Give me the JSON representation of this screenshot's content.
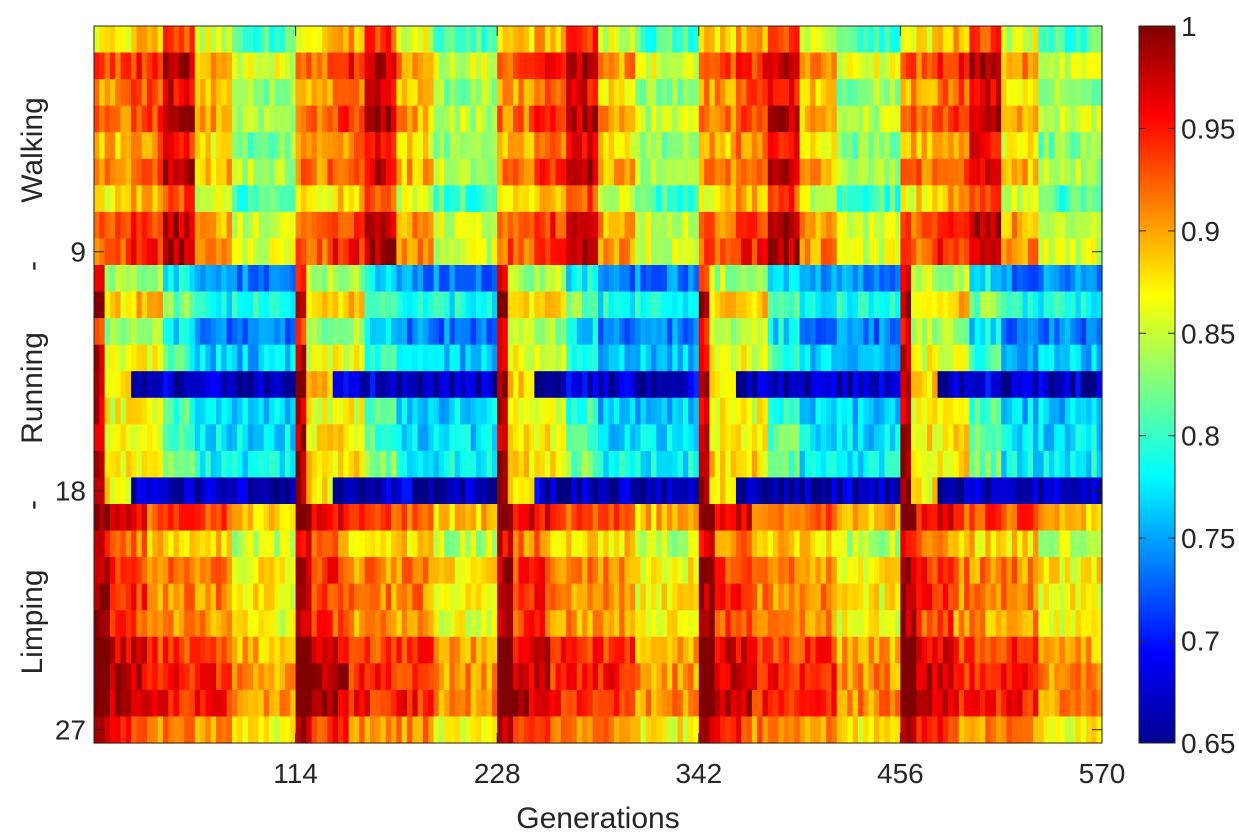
{
  "chart_data": {
    "type": "heatmap",
    "xlabel": "Generations",
    "x_range": [
      1,
      570
    ],
    "x_ticks": [
      "114",
      "228",
      "342",
      "456",
      "570"
    ],
    "x_tick_values": [
      114,
      228,
      342,
      456,
      570
    ],
    "y_range": [
      1,
      27
    ],
    "y_ticks": [
      "9",
      "18",
      "27"
    ],
    "y_tick_values": [
      9,
      18,
      27
    ],
    "y_group_labels": [
      "Walking",
      "-",
      "Running",
      "-",
      "Limping"
    ],
    "colormap": "jet",
    "color_range": [
      0.65,
      1.0
    ],
    "colorbar_ticks": [
      "1",
      "0.95",
      "0.9",
      "0.85",
      "0.8",
      "0.75",
      "0.7",
      "0.65"
    ],
    "colorbar_tick_values": [
      1.0,
      0.95,
      0.9,
      0.85,
      0.8,
      0.75,
      0.7,
      0.65
    ],
    "cycles": 5,
    "cycle_length": 114,
    "row_profiles": {
      "walking": {
        "rows": [
          1,
          9
        ],
        "period": [
          {
            "start": 0,
            "end": 20,
            "value": 0.9
          },
          {
            "start": 20,
            "end": 37,
            "value": 0.92
          },
          {
            "start": 37,
            "end": 57,
            "value": 0.96
          },
          {
            "start": 57,
            "end": 76,
            "value": 0.88
          },
          {
            "start": 76,
            "end": 114,
            "value": 0.83
          }
        ]
      },
      "running": {
        "rows": [
          10,
          18
        ],
        "period": [
          {
            "start": 0,
            "end": 5,
            "value": 0.97
          },
          {
            "start": 5,
            "end": 37,
            "value": 0.86
          },
          {
            "start": 37,
            "end": 57,
            "value": 0.8
          },
          {
            "start": 57,
            "end": 114,
            "value": 0.76
          }
        ],
        "dark_rows": [
          14,
          18
        ],
        "dark_value": 0.67
      },
      "limping": {
        "rows": [
          19,
          27
        ],
        "period": [
          {
            "start": 0,
            "end": 8,
            "value": 0.98
          },
          {
            "start": 8,
            "end": 30,
            "value": 0.93
          },
          {
            "start": 30,
            "end": 76,
            "value": 0.9
          },
          {
            "start": 76,
            "end": 114,
            "value": 0.86
          }
        ],
        "lower_rows_boost": 0.03
      }
    }
  }
}
